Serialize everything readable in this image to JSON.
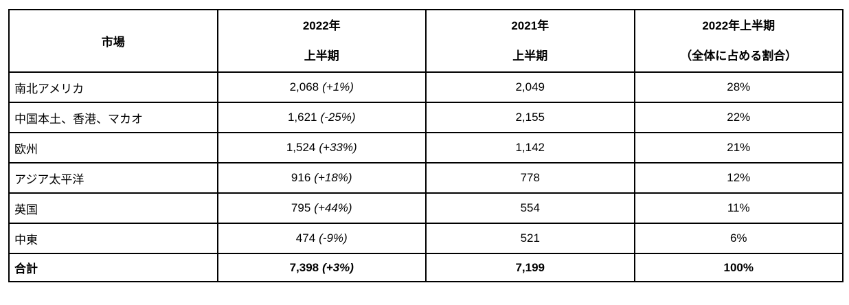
{
  "table": {
    "headers": {
      "market": "市場",
      "h1_2022_line1": "2022年",
      "h1_2022_line2": "上半期",
      "h1_2021_line1": "2021年",
      "h1_2021_line2": "上半期",
      "share_line1": "2022年上半期",
      "share_line2": "（全体に占める割合）"
    },
    "rows": [
      {
        "market": "南北アメリカ",
        "h1_2022": "2,068",
        "h1_2022_change": "(+1%)",
        "h1_2021": "2,049",
        "share": "28%"
      },
      {
        "market": "中国本土、香港、マカオ",
        "h1_2022": "1,621",
        "h1_2022_change": "(-25%)",
        "h1_2021": "2,155",
        "share": "22%"
      },
      {
        "market": "欧州",
        "h1_2022": "1,524",
        "h1_2022_change": "(+33%)",
        "h1_2021": "1,142",
        "share": "21%"
      },
      {
        "market": "アジア太平洋",
        "h1_2022": "916",
        "h1_2022_change": "(+18%)",
        "h1_2021": "778",
        "share": "12%"
      },
      {
        "market": "英国",
        "h1_2022": "795",
        "h1_2022_change": "(+44%)",
        "h1_2021": "554",
        "share": "11%"
      },
      {
        "market": "中東",
        "h1_2022": "474",
        "h1_2022_change": "(-9%)",
        "h1_2021": "521",
        "share": "6%"
      }
    ],
    "total": {
      "market": "合計",
      "h1_2022": "7,398",
      "h1_2022_change": "(+3%)",
      "h1_2021": "7,199",
      "share": "100%"
    }
  }
}
